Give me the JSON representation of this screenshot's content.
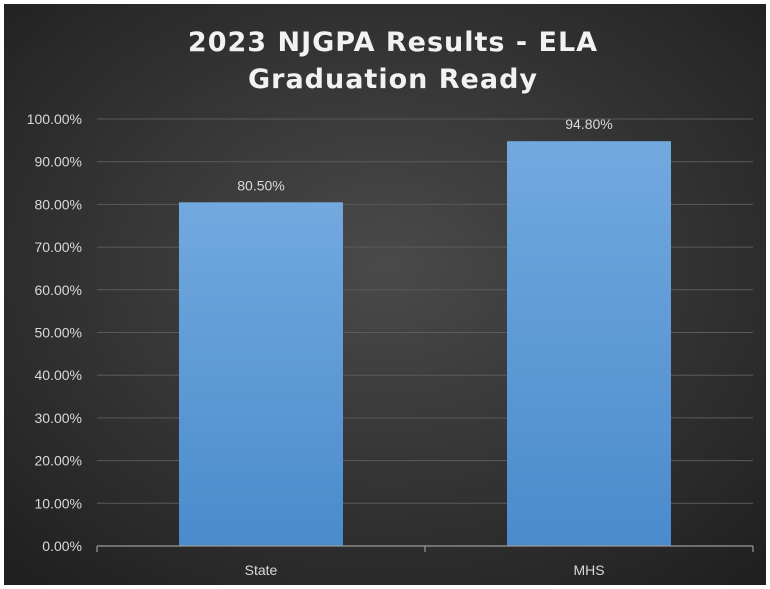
{
  "chart_data": {
    "type": "bar",
    "title": [
      "2023 NJGPA Results - ELA",
      "Graduation Ready"
    ],
    "categories": [
      "State",
      "MHS"
    ],
    "values": [
      80.5,
      94.8
    ],
    "data_labels": [
      "80.50%",
      "94.80%"
    ],
    "ylim": [
      0,
      100
    ],
    "y_ticks": [
      0,
      10,
      20,
      30,
      40,
      50,
      60,
      70,
      80,
      90,
      100
    ],
    "y_tick_labels": [
      "0.00%",
      "10.00%",
      "20.00%",
      "30.00%",
      "40.00%",
      "50.00%",
      "60.00%",
      "70.00%",
      "80.00%",
      "90.00%",
      "100.00%"
    ],
    "xlabel": "",
    "ylabel": "",
    "grid": true,
    "legend": "none",
    "colors": {
      "bar_top": "#72a9df",
      "bar_bottom": "#4a8bcc",
      "background_center": "#4a4a4a",
      "background_edge": "#1e1e1e",
      "grid": "#5a5a5a",
      "text": "#d9d9d9",
      "title": "#f2f2f2"
    }
  }
}
